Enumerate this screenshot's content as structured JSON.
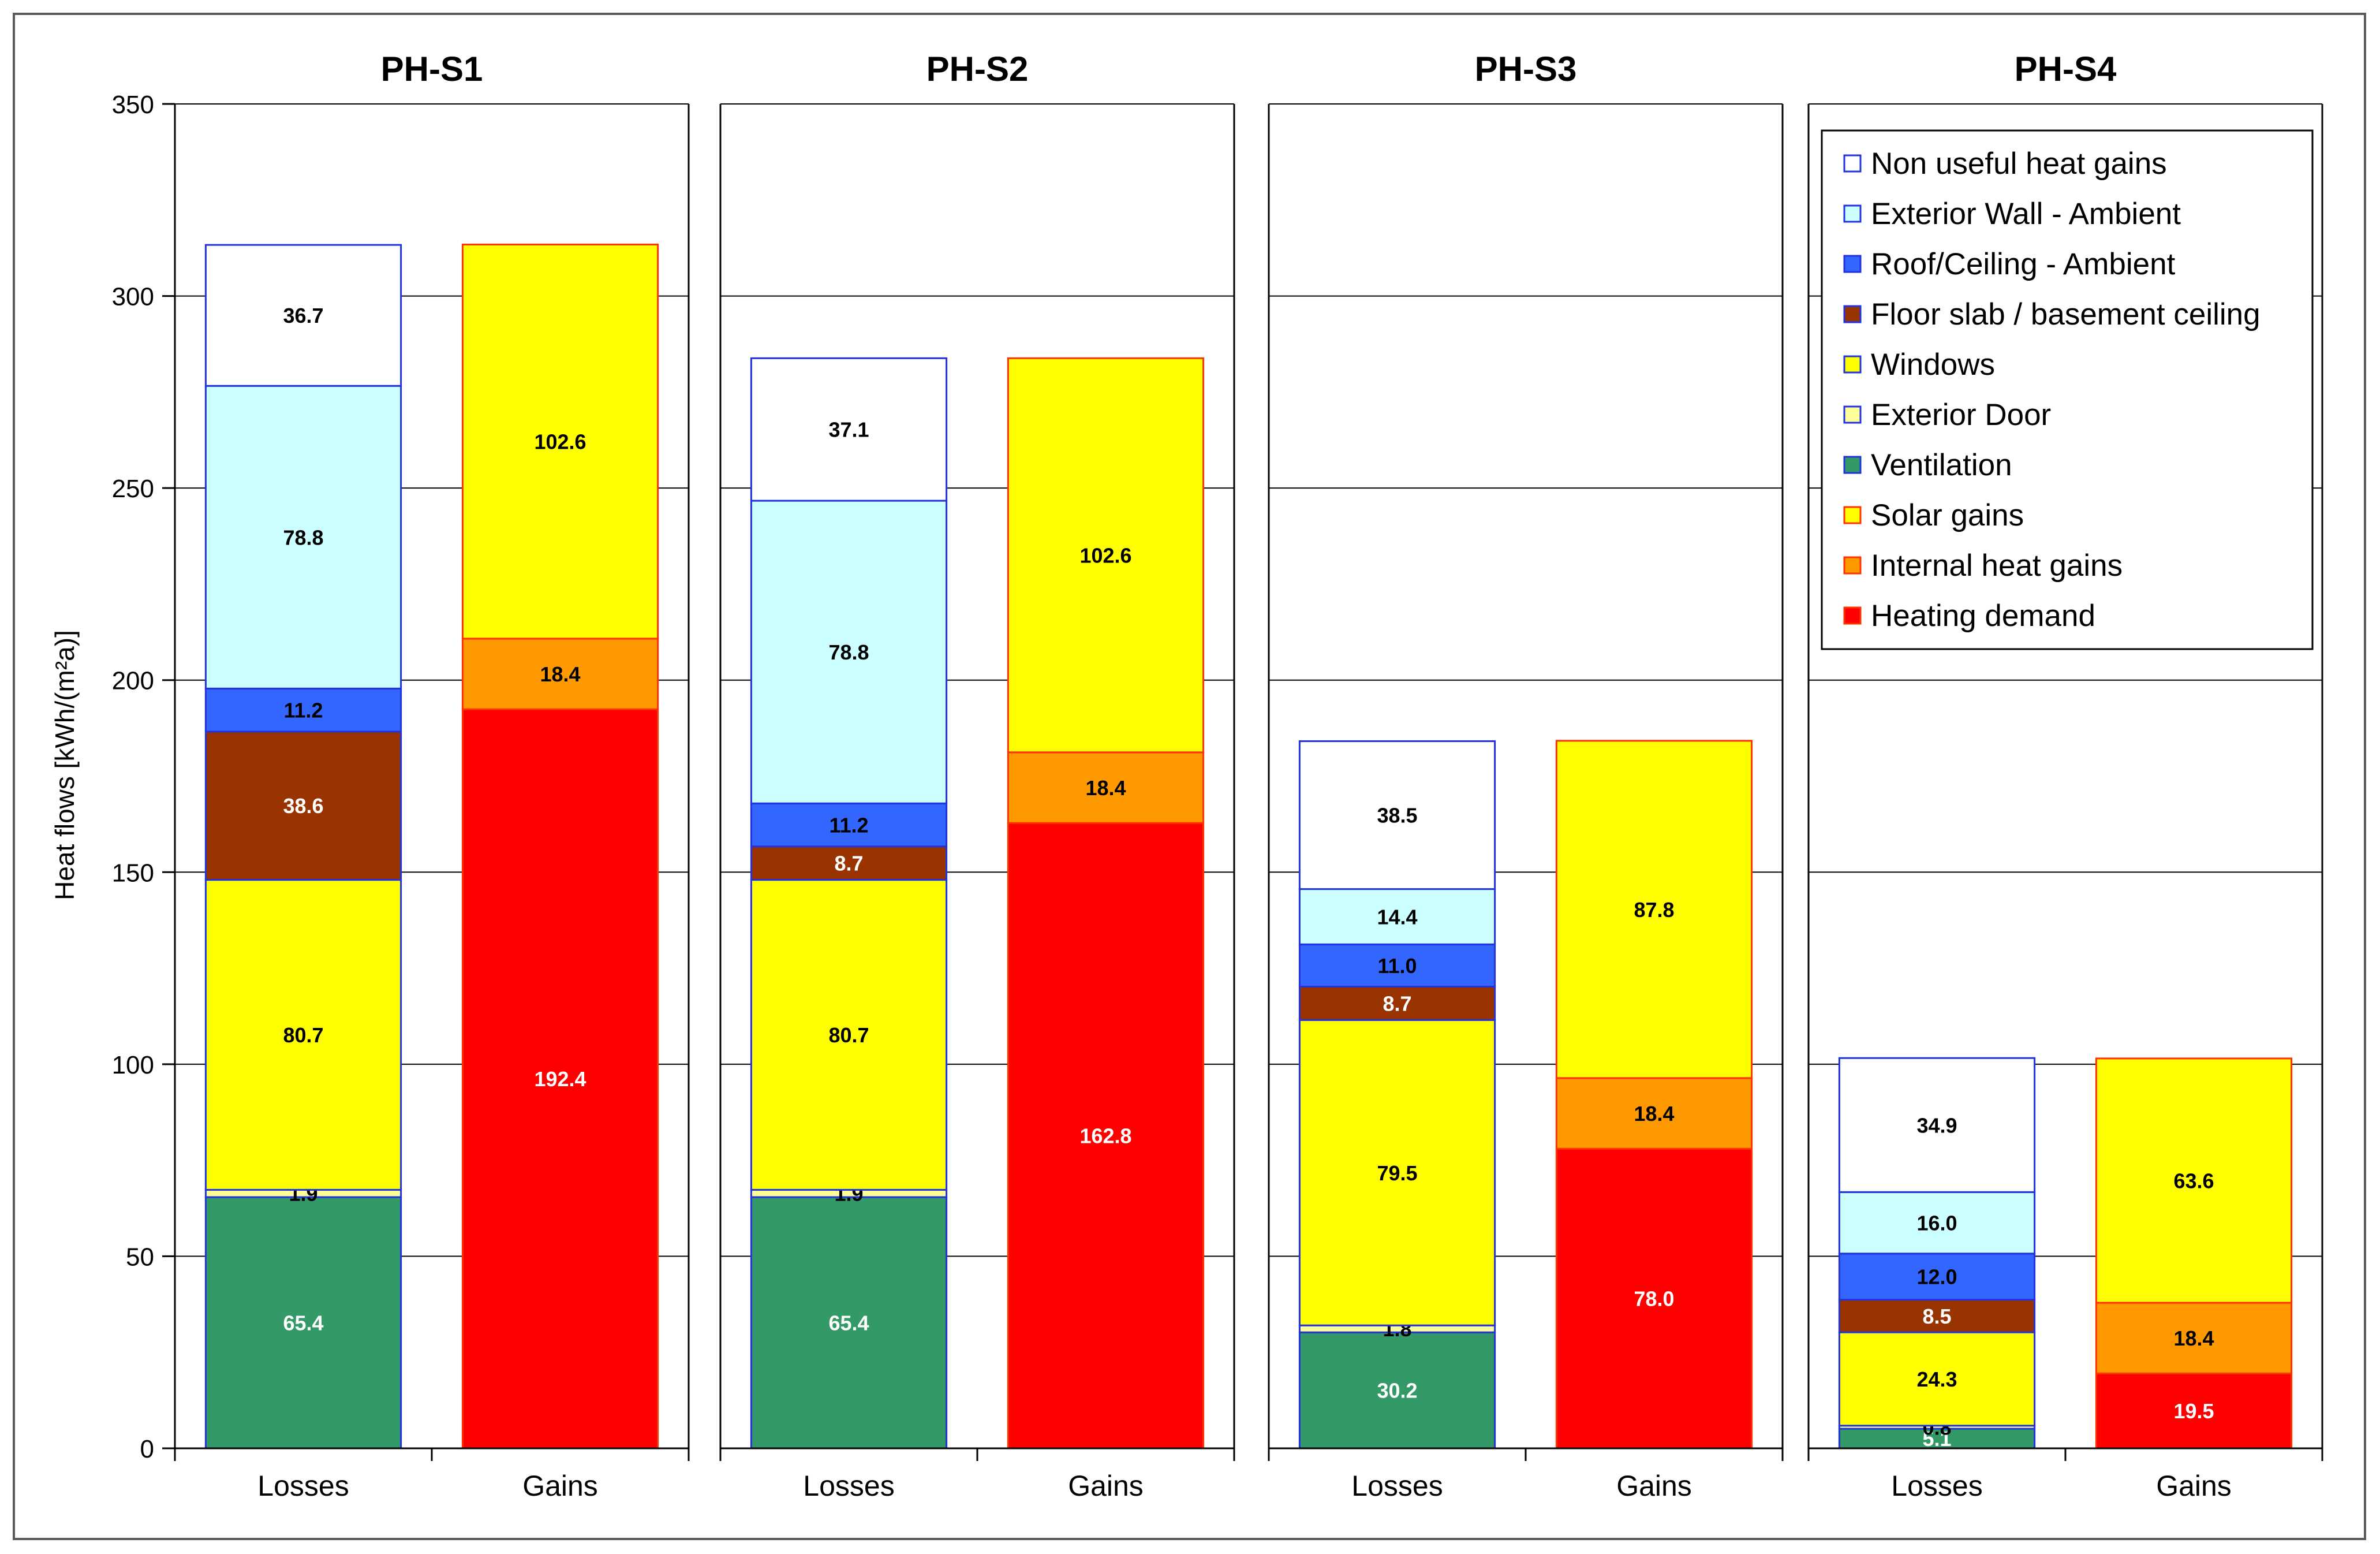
{
  "chart_data": {
    "type": "bar",
    "stacked": true,
    "ylabel": "Heat flows [kWh/(m²a)]",
    "ylim": [
      0,
      350
    ],
    "yticks": [
      0,
      50,
      100,
      150,
      200,
      250,
      300,
      350
    ],
    "grid": true,
    "legend_position": "top-right",
    "categories": [
      "Losses",
      "Gains"
    ],
    "component_types": [
      {
        "key": "nonuseful",
        "name": "Non useful heat gains",
        "fill": "#FFFFFF",
        "stroke": "#2233DD",
        "label_color": "#000000"
      },
      {
        "key": "wall",
        "name": "Exterior Wall - Ambient",
        "fill": "#CCFFFF",
        "stroke": "#2233DD",
        "label_color": "#000000"
      },
      {
        "key": "roof",
        "name": "Roof/Ceiling - Ambient",
        "fill": "#3366FF",
        "stroke": "#2233DD",
        "label_color": "#000000"
      },
      {
        "key": "floor",
        "name": "Floor slab / basement ceiling",
        "fill": "#993300",
        "stroke": "#2233DD",
        "label_color": "#FFFFFF"
      },
      {
        "key": "windows",
        "name": "Windows",
        "fill": "#FFFF00",
        "stroke": "#2233DD",
        "label_color": "#000000"
      },
      {
        "key": "door",
        "name": "Exterior Door",
        "fill": "#FFFF99",
        "stroke": "#2233DD",
        "label_color": "#000000"
      },
      {
        "key": "ventilation",
        "name": "Ventilation",
        "fill": "#339966",
        "stroke": "#2233DD",
        "label_color": "#FFFFFF"
      },
      {
        "key": "solar",
        "name": "Solar gains",
        "fill": "#FFFF00",
        "stroke": "#FF3300",
        "label_color": "#000000"
      },
      {
        "key": "internal",
        "name": "Internal heat gains",
        "fill": "#FF9900",
        "stroke": "#FF3300",
        "label_color": "#000000"
      },
      {
        "key": "heating",
        "name": "Heating demand",
        "fill": "#FF0000",
        "stroke": "#FF3300",
        "label_color": "#FFFFFF"
      }
    ],
    "panels": [
      {
        "title": "PH-S1",
        "losses": [
          {
            "key": "ventilation",
            "value": 65.4,
            "label": "65.4"
          },
          {
            "key": "door",
            "value": 1.9,
            "label": "1.9"
          },
          {
            "key": "windows",
            "value": 80.7,
            "label": "80.7"
          },
          {
            "key": "floor",
            "value": 38.6,
            "label": "38.6"
          },
          {
            "key": "roof",
            "value": 11.2,
            "label": "11.2"
          },
          {
            "key": "wall",
            "value": 78.8,
            "label": "78.8"
          },
          {
            "key": "nonuseful",
            "value": 36.7,
            "label": "36.7"
          }
        ],
        "gains": [
          {
            "key": "heating",
            "value": 192.4,
            "label": "192.4"
          },
          {
            "key": "internal",
            "value": 18.4,
            "label": "18.4"
          },
          {
            "key": "solar",
            "value": 102.6,
            "label": "102.6"
          }
        ]
      },
      {
        "title": "PH-S2",
        "losses": [
          {
            "key": "ventilation",
            "value": 65.4,
            "label": "65.4"
          },
          {
            "key": "door",
            "value": 1.9,
            "label": "1.9"
          },
          {
            "key": "windows",
            "value": 80.7,
            "label": "80.7"
          },
          {
            "key": "floor",
            "value": 8.7,
            "label": "8.7"
          },
          {
            "key": "roof",
            "value": 11.2,
            "label": "11.2"
          },
          {
            "key": "wall",
            "value": 78.8,
            "label": "78.8"
          },
          {
            "key": "nonuseful",
            "value": 37.1,
            "label": "37.1"
          }
        ],
        "gains": [
          {
            "key": "heating",
            "value": 162.8,
            "label": "162.8"
          },
          {
            "key": "internal",
            "value": 18.4,
            "label": "18.4"
          },
          {
            "key": "solar",
            "value": 102.6,
            "label": "102.6"
          }
        ]
      },
      {
        "title": "PH-S3",
        "losses": [
          {
            "key": "ventilation",
            "value": 30.2,
            "label": "30.2"
          },
          {
            "key": "door",
            "value": 1.8,
            "label": "1.8"
          },
          {
            "key": "windows",
            "value": 79.5,
            "label": "79.5"
          },
          {
            "key": "floor",
            "value": 8.7,
            "label": "8.7"
          },
          {
            "key": "roof",
            "value": 11.0,
            "label": "11.0"
          },
          {
            "key": "wall",
            "value": 14.4,
            "label": "14.4"
          },
          {
            "key": "nonuseful",
            "value": 38.5,
            "label": "38.5"
          }
        ],
        "gains": [
          {
            "key": "heating",
            "value": 78.0,
            "label": "78.0"
          },
          {
            "key": "internal",
            "value": 18.4,
            "label": "18.4"
          },
          {
            "key": "solar",
            "value": 87.8,
            "label": "87.8"
          }
        ]
      },
      {
        "title": "PH-S4",
        "losses": [
          {
            "key": "ventilation",
            "value": 5.1,
            "label": "5.1"
          },
          {
            "key": "door",
            "value": 0.8,
            "label": "0.8"
          },
          {
            "key": "windows",
            "value": 24.3,
            "label": "24.3"
          },
          {
            "key": "floor",
            "value": 8.5,
            "label": "8.5"
          },
          {
            "key": "roof",
            "value": 12.0,
            "label": "12.0"
          },
          {
            "key": "wall",
            "value": 16.0,
            "label": "16.0"
          },
          {
            "key": "nonuseful",
            "value": 34.9,
            "label": "34.9"
          }
        ],
        "gains": [
          {
            "key": "heating",
            "value": 19.5,
            "label": "19.5"
          },
          {
            "key": "internal",
            "value": 18.4,
            "label": "18.4"
          },
          {
            "key": "solar",
            "value": 63.6,
            "label": "63.6"
          }
        ]
      }
    ]
  }
}
